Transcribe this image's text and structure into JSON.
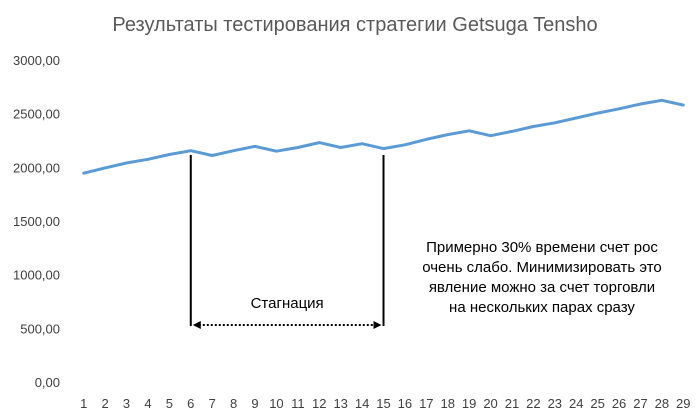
{
  "chart_data": {
    "type": "line",
    "title": "Результаты тестирования стратегии Getsuga Tensho",
    "xlabel": "",
    "ylabel": "",
    "categories": [
      "1",
      "2",
      "3",
      "4",
      "5",
      "6",
      "7",
      "8",
      "9",
      "10",
      "11",
      "12",
      "13",
      "14",
      "15",
      "16",
      "17",
      "18",
      "19",
      "20",
      "21",
      "22",
      "23",
      "24",
      "25",
      "26",
      "27",
      "28",
      "29"
    ],
    "series": [
      {
        "values": [
          1945,
          1995,
          2040,
          2075,
          2120,
          2155,
          2110,
          2155,
          2195,
          2150,
          2185,
          2230,
          2185,
          2220,
          2175,
          2210,
          2260,
          2305,
          2340,
          2295,
          2335,
          2380,
          2415,
          2460,
          2505,
          2545,
          2590,
          2625,
          2580
        ],
        "color": "#5b9bd5"
      }
    ],
    "ylim": [
      0,
      3000
    ],
    "yticks": [
      0,
      500,
      1000,
      1500,
      2000,
      2500,
      3000
    ],
    "ytick_labels": [
      "0,00",
      "500,00",
      "1000,00",
      "1500,00",
      "2000,00",
      "2500,00",
      "3000,00"
    ],
    "grid": false,
    "legend": "none",
    "annotations": {
      "stagnation_start": "6",
      "stagnation_end": "15",
      "stagnation_label": "Стагнация",
      "note_lines": [
        "Примерно 30% времени счет рос",
        "очень слабо. Минимизировать это",
        "явление можно за счет торговли",
        "на нескольких парах сразу"
      ]
    }
  }
}
